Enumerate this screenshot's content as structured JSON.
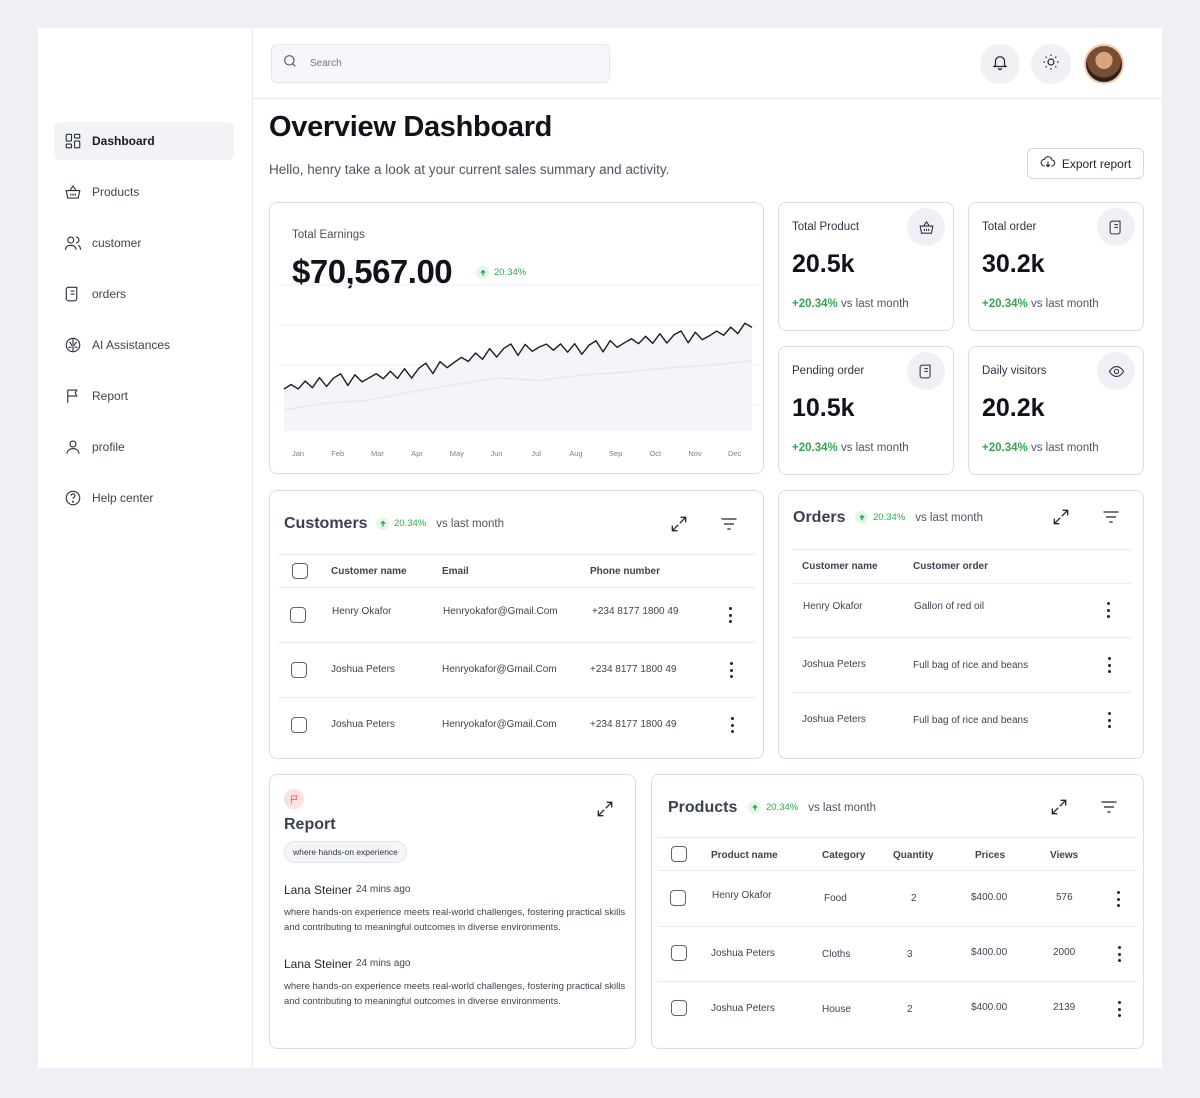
{
  "sidebar": {
    "items": [
      {
        "label": "Dashboard",
        "icon": "dashboard-icon"
      },
      {
        "label": "Products",
        "icon": "basket-icon"
      },
      {
        "label": "customer",
        "icon": "users-icon"
      },
      {
        "label": "orders",
        "icon": "receipt-icon"
      },
      {
        "label": "AI Assistances",
        "icon": "brain-icon"
      },
      {
        "label": "Report",
        "icon": "flag-icon"
      },
      {
        "label": "profile",
        "icon": "user-icon"
      },
      {
        "label": "Help center",
        "icon": "help-icon"
      }
    ]
  },
  "topbar": {
    "search_placeholder": "Search"
  },
  "header": {
    "title": "Overview Dashboard",
    "subtitle": "Hello, henry take a look at your current sales summary and activity.",
    "export_label": "Export report"
  },
  "earnings": {
    "label": "Total Earnings",
    "value": "$70,567.00",
    "change": "20.34%"
  },
  "chart_data": {
    "type": "line",
    "categories": [
      "Jan",
      "Feb",
      "Mar",
      "Apr",
      "May",
      "Jun",
      "Jul",
      "Aug",
      "Sep",
      "Oct",
      "Nov",
      "Dec"
    ],
    "series": [
      {
        "values": [
          30,
          35,
          38,
          41,
          49,
          56,
          60,
          58,
          63,
          66,
          68,
          74
        ]
      },
      {
        "values": [
          15,
          20,
          22,
          28,
          33,
          38,
          36,
          40,
          42,
          45,
          47,
          50
        ]
      }
    ],
    "colors": [
      "#1a1d24",
      "#e6e8ed"
    ]
  },
  "stats": [
    {
      "label": "Total Product",
      "value": "20.5k",
      "change": "+20.34%",
      "suffix": "vs last month",
      "icon": "basket-icon"
    },
    {
      "label": "Total order",
      "value": "30.2k",
      "change": "+20.34%",
      "suffix": "vs last month",
      "icon": "receipt-icon"
    },
    {
      "label": "Pending order",
      "value": "10.5k",
      "change": "+20.34%",
      "suffix": "vs last month",
      "icon": "receipt-icon"
    },
    {
      "label": "Daily visitors",
      "value": "20.2k",
      "change": "+20.34%",
      "suffix": "vs last month",
      "icon": "eye-icon"
    }
  ],
  "customers": {
    "title": "Customers",
    "change": "20.34%",
    "suffix": "vs last month",
    "headers": [
      "Customer name",
      "Email",
      "Phone number"
    ],
    "rows": [
      [
        "Henry Okafor",
        "Henryokafor@Gmail.Com",
        "+234 8177 1800 49"
      ],
      [
        "Joshua Peters",
        "Henryokafor@Gmail.Com",
        "+234 8177 1800 49"
      ],
      [
        "Joshua Peters",
        "Henryokafor@Gmail.Com",
        "+234 8177 1800 49"
      ]
    ]
  },
  "orders": {
    "title": "Orders",
    "change": "20.34%",
    "suffix": "vs last month",
    "headers": [
      "Customer name",
      "Customer order"
    ],
    "rows": [
      [
        "Henry Okafor",
        "Gallon of red oil"
      ],
      [
        "Joshua Peters",
        "Full bag of rice and beans"
      ],
      [
        "Joshua Peters",
        "Full bag of rice and beans"
      ]
    ]
  },
  "report": {
    "title": "Report",
    "tag": "where hands-on experience",
    "messages": [
      {
        "name": "Lana Steiner",
        "time": "24 mins ago",
        "body": "where hands-on experience meets real-world challenges, fostering practical skills and contributing to meaningful outcomes in diverse environments."
      },
      {
        "name": "Lana Steiner",
        "time": "24 mins ago",
        "body": "where hands-on experience meets real-world challenges, fostering practical skills and contributing to meaningful outcomes in diverse environments."
      }
    ]
  },
  "products": {
    "title": "Products",
    "change": "20.34%",
    "suffix": "vs last month",
    "headers": [
      "Product name",
      "Category",
      "Quantity",
      "Prices",
      "Views"
    ],
    "rows": [
      [
        "Henry Okafor",
        "Food",
        "2",
        "$400.00",
        "576"
      ],
      [
        "Joshua Peters",
        "Cloths",
        "3",
        "$400.00",
        "2000"
      ],
      [
        "Joshua Peters",
        "House",
        "2",
        "$400.00",
        "2139"
      ]
    ]
  }
}
